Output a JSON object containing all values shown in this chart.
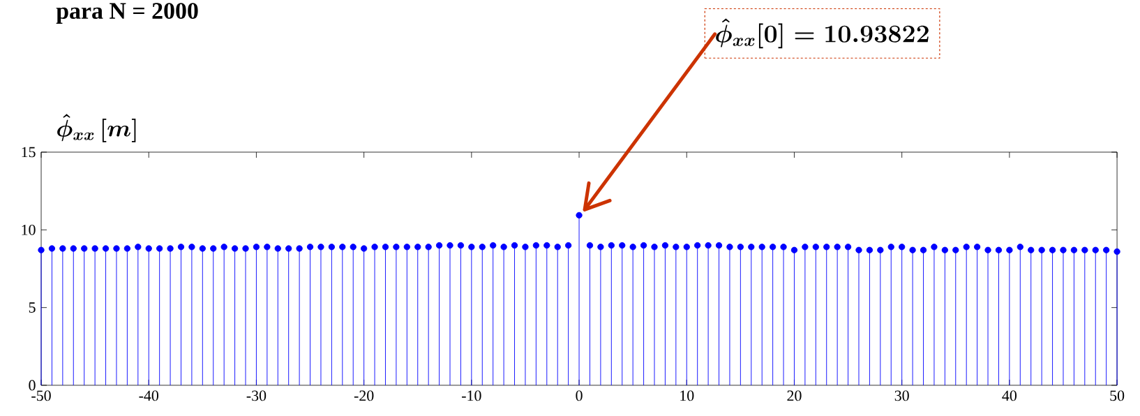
{
  "chart_data": {
    "type": "lollipop",
    "title": "para N = 2000",
    "ylabel": "\\hat{\\phi}_{xx}\\,[m]",
    "annotations": [
      "\\hat{\\phi}_{xx}[0] = 10.93822"
    ],
    "x": [
      -50,
      -49,
      -48,
      -47,
      -46,
      -45,
      -44,
      -43,
      -42,
      -41,
      -40,
      -39,
      -38,
      -37,
      -36,
      -35,
      -34,
      -33,
      -32,
      -31,
      -30,
      -29,
      -28,
      -27,
      -26,
      -25,
      -24,
      -23,
      -22,
      -21,
      -20,
      -19,
      -18,
      -17,
      -16,
      -15,
      -14,
      -13,
      -12,
      -11,
      -10,
      -9,
      -8,
      -7,
      -6,
      -5,
      -4,
      -3,
      -2,
      -1,
      0,
      1,
      2,
      3,
      4,
      5,
      6,
      7,
      8,
      9,
      10,
      11,
      12,
      13,
      14,
      15,
      16,
      17,
      18,
      19,
      20,
      21,
      22,
      23,
      24,
      25,
      26,
      27,
      28,
      29,
      30,
      31,
      32,
      33,
      34,
      35,
      36,
      37,
      38,
      39,
      40,
      41,
      42,
      43,
      44,
      45,
      46,
      47,
      48,
      49,
      50
    ],
    "values": [
      8.7,
      8.8,
      8.8,
      8.8,
      8.8,
      8.8,
      8.8,
      8.8,
      8.8,
      8.9,
      8.8,
      8.8,
      8.8,
      8.9,
      8.9,
      8.8,
      8.8,
      8.9,
      8.8,
      8.8,
      8.9,
      8.9,
      8.8,
      8.8,
      8.8,
      8.9,
      8.9,
      8.9,
      8.9,
      8.9,
      8.8,
      8.9,
      8.9,
      8.9,
      8.9,
      8.9,
      8.9,
      9.0,
      9.0,
      9.0,
      8.9,
      8.9,
      9.0,
      8.9,
      9.0,
      8.9,
      9.0,
      9.0,
      8.9,
      9.0,
      10.94,
      9.0,
      8.9,
      9.0,
      9.0,
      8.9,
      9.0,
      8.9,
      9.0,
      8.9,
      8.9,
      9.0,
      9.0,
      9.0,
      8.9,
      8.9,
      8.9,
      8.9,
      8.9,
      8.9,
      8.7,
      8.9,
      8.9,
      8.9,
      8.9,
      8.9,
      8.7,
      8.7,
      8.7,
      8.9,
      8.9,
      8.7,
      8.7,
      8.9,
      8.7,
      8.7,
      8.9,
      8.9,
      8.7,
      8.7,
      8.7,
      8.9,
      8.7,
      8.7,
      8.7,
      8.7,
      8.7,
      8.7,
      8.7,
      8.7,
      8.6
    ],
    "color": "#0000ff",
    "marker": "circle",
    "xlim": [
      -50,
      50
    ],
    "ylim": [
      0,
      15
    ],
    "xticks": [
      -50,
      -40,
      -30,
      -20,
      -10,
      0,
      10,
      20,
      30,
      40,
      50
    ],
    "yticks": [
      0,
      5,
      10,
      15
    ]
  }
}
